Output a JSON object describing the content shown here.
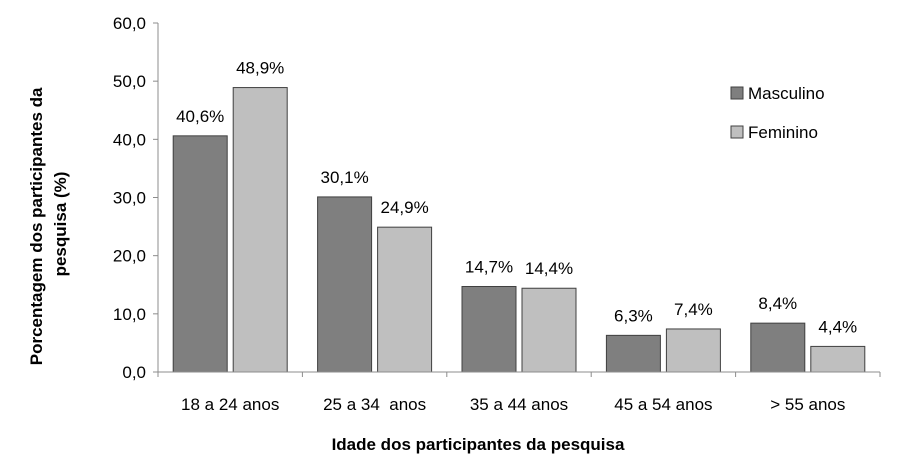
{
  "chart_data": {
    "type": "bar",
    "categories": [
      "18 a 24 anos",
      "25 a 34  anos",
      "35 a 44 anos",
      "45 a 54 anos",
      "> 55 anos"
    ],
    "series": [
      {
        "name": "Masculino",
        "values": [
          40.6,
          30.1,
          14.7,
          6.3,
          8.4
        ],
        "labels": [
          "40,6%",
          "30,1%",
          "14,7%",
          "6,3%",
          "8,4%"
        ],
        "color": "#7f7f7f"
      },
      {
        "name": "Feminino",
        "values": [
          48.9,
          24.9,
          14.4,
          7.4,
          4.4
        ],
        "labels": [
          "48,9%",
          "24,9%",
          "14,4%",
          "7,4%",
          "4,4%"
        ],
        "color": "#bfbfbf"
      }
    ],
    "xlabel": "Idade dos participantes da pesquisa",
    "ylabel_lines": [
      "Porcentagem dos participantes da",
      "pesquisa (%)"
    ],
    "ylim": [
      0,
      60
    ],
    "yticks": [
      0,
      10,
      20,
      30,
      40,
      50,
      60
    ],
    "ytick_labels": [
      "0,0",
      "10,0",
      "20,0",
      "30,0",
      "40,0",
      "50,0",
      "60,0"
    ],
    "grid": false,
    "legend_position": "right"
  }
}
